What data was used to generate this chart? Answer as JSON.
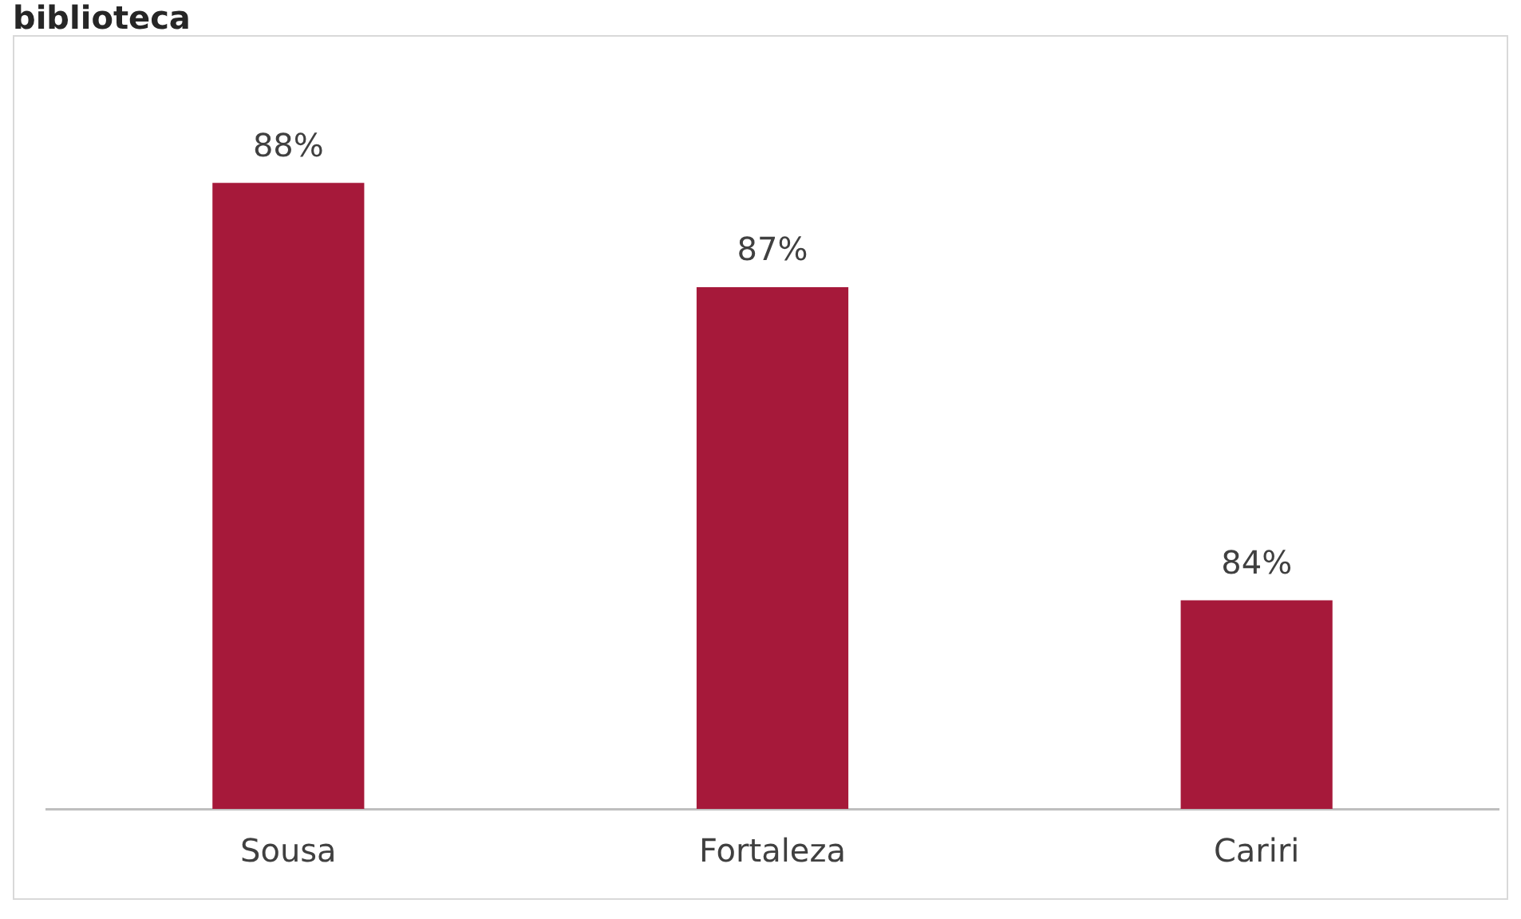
{
  "chart_data": {
    "type": "bar",
    "title": "biblioteca",
    "categories": [
      "Sousa",
      "Fortaleza",
      "Cariri"
    ],
    "values": [
      88,
      87,
      84
    ],
    "value_labels": [
      "88%",
      "87%",
      "84%"
    ],
    "color": "#a6193a",
    "ylim": [
      82,
      89.4
    ],
    "tick_labels": "x",
    "grid": false,
    "legend": false
  }
}
